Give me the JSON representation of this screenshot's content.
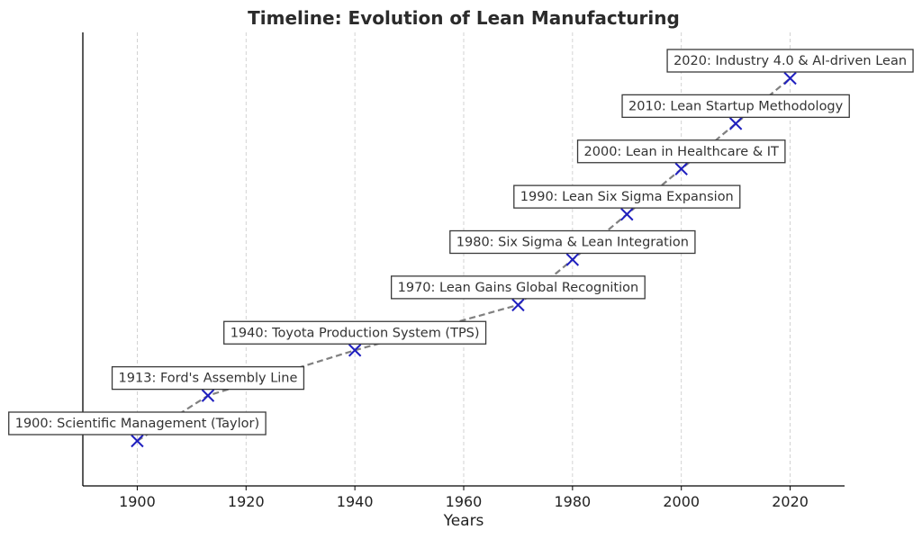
{
  "chart_data": {
    "type": "scatter",
    "title": "Timeline: Evolution of Lean Manufacturing",
    "xlabel": "Years",
    "ylabel": "",
    "xlim": [
      1890,
      2030
    ],
    "ylim": [
      0,
      9
    ],
    "xticks": [
      1900,
      1920,
      1940,
      1960,
      1980,
      2000,
      2020
    ],
    "grid": "vertical dashed",
    "connector": "dashed gray line",
    "marker": "x",
    "marker_color": "#1f1fbf",
    "line_color": "#808080",
    "points": [
      {
        "x": 1900,
        "y": 1,
        "label": "1900: Scientific Management (Taylor)"
      },
      {
        "x": 1913,
        "y": 2,
        "label": "1913: Ford's Assembly Line"
      },
      {
        "x": 1940,
        "y": 3,
        "label": "1940: Toyota Production System (TPS)"
      },
      {
        "x": 1970,
        "y": 4,
        "label": "1970: Lean Gains Global Recognition"
      },
      {
        "x": 1980,
        "y": 5,
        "label": "1980: Six Sigma & Lean Integration"
      },
      {
        "x": 1990,
        "y": 6,
        "label": "1990: Lean Six Sigma Expansion"
      },
      {
        "x": 2000,
        "y": 7,
        "label": "2000: Lean in Healthcare & IT"
      },
      {
        "x": 2010,
        "y": 8,
        "label": "2010: Lean Startup Methodology"
      },
      {
        "x": 2020,
        "y": 9,
        "label": "2020: Industry 4.0 & AI-driven Lean"
      }
    ]
  }
}
